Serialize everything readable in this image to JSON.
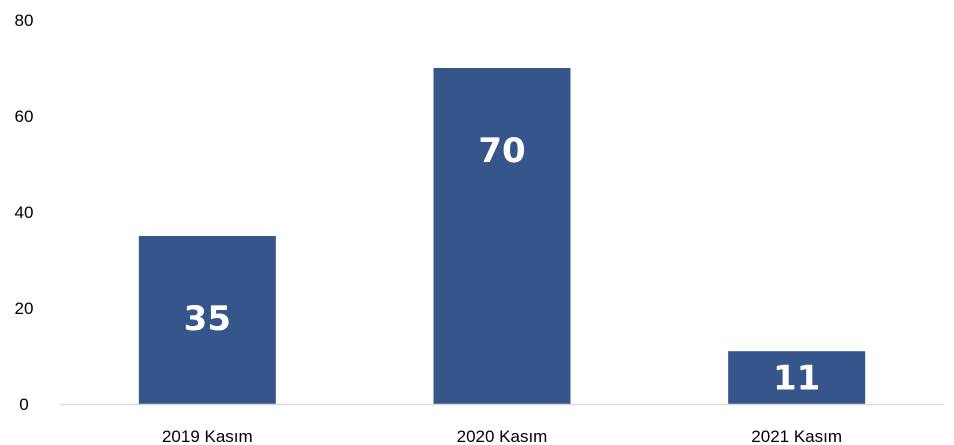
{
  "chart_data": {
    "type": "bar",
    "categories": [
      "2019 Kasım",
      "2020 Kasım",
      "2021 Kasım"
    ],
    "values": [
      35,
      70,
      11
    ],
    "data_labels": [
      "35",
      "70",
      "11"
    ],
    "title": "",
    "xlabel": "",
    "ylabel": "",
    "ylim": [
      0,
      80
    ],
    "yticks": [
      0,
      20,
      40,
      60,
      80
    ],
    "ytick_labels": [
      "0",
      "20",
      "40",
      "60",
      "80"
    ],
    "grid": false,
    "legend": "none",
    "colors": {
      "bar": "#36558a",
      "axis": "#d9d9d9",
      "data_label": "#ffffff",
      "text": "#000000"
    }
  }
}
